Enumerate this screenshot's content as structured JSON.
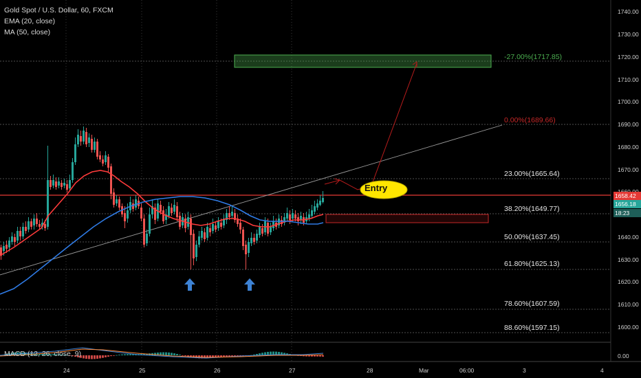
{
  "legend": {
    "title": "Gold Spot / U.S. Dollar, 60, FXCM",
    "ema": "EMA (20, close)",
    "ma": "MA (50, close)"
  },
  "macd_label": "MACD (12, 26, close, 9)",
  "entry_label": "Entry",
  "target_label": "-27.00%(1717.85)",
  "stop_label": "0.00%(1689.66)",
  "fib_levels": [
    {
      "label": "23.00%(1665.64)",
      "price": 1665.64
    },
    {
      "label": "38.20%(1649.77)",
      "price": 1649.77
    },
    {
      "label": "50.00%(1637.45)",
      "price": 1637.45
    },
    {
      "label": "61.80%(1625.13)",
      "price": 1625.13
    },
    {
      "label": "78.60%(1607.59)",
      "price": 1607.59
    },
    {
      "label": "88.60%(1597.15)",
      "price": 1597.15
    }
  ],
  "price_axis": [
    "1740.00",
    "1730.00",
    "1720.00",
    "1710.00",
    "1700.00",
    "1690.00",
    "1680.00",
    "1670.00",
    "1660.00",
    "1640.00",
    "1630.00",
    "1620.00",
    "1610.00",
    "1600.00"
  ],
  "time_axis": [
    "24",
    "25",
    "26",
    "27",
    "28",
    "Mar",
    "06:00",
    "3",
    "4"
  ],
  "price_tags": {
    "red": "1658.42",
    "green": "1656.18",
    "time": "18:23"
  },
  "macd_axis": "0.00",
  "colors": {
    "up": "#26a69a",
    "down": "#ef5350",
    "ema": "#ff3b3b",
    "ma": "#2f7be5",
    "target": "#4caf50",
    "stop": "#b71c1c",
    "entry": "#ffe600",
    "arrow": "#3d82d4"
  },
  "icons": [
    "up-arrow-icon",
    "up-arrow-icon"
  ]
}
